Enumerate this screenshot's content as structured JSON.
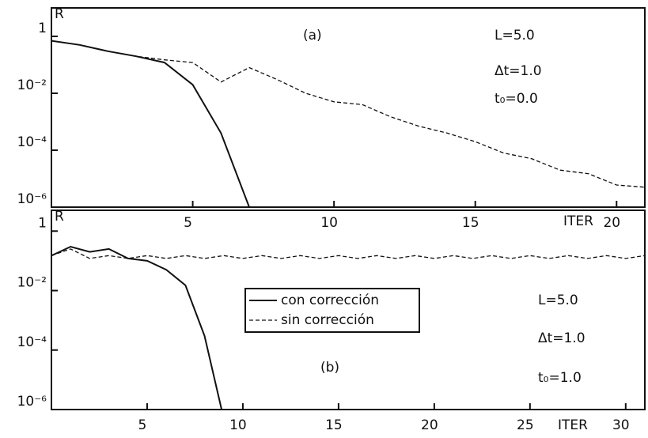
{
  "chart_data": [
    {
      "type": "line",
      "log_y": true,
      "y_label": "R",
      "x_label": "ITER",
      "annotations": [
        "(a)",
        "L=5.0",
        "Δt=1.0",
        "t₀=0.0"
      ],
      "x": [
        0,
        1,
        2,
        3,
        4,
        5,
        6,
        7,
        8,
        9,
        10,
        11,
        12,
        13,
        14,
        15,
        16,
        17,
        18,
        19,
        20,
        21
      ],
      "xlim": [
        0,
        21
      ],
      "xticks": [
        5,
        10,
        15,
        20
      ],
      "ylim": [
        1e-06,
        10
      ],
      "yticks": [
        1,
        {
          "value": 0.01,
          "label": "10⁻²"
        },
        {
          "value": 0.0001,
          "label": "10⁻⁴"
        },
        {
          "value": 1e-06,
          "label": "10⁻⁶"
        }
      ],
      "series": [
        {
          "color": "#111111",
          "dash": "solid",
          "values": [
            0.7,
            0.5,
            0.3,
            0.2,
            0.12,
            0.02,
            0.0004,
            1e-06,
            null,
            null,
            null,
            null,
            null,
            null,
            null,
            null,
            null,
            null,
            null,
            null,
            null,
            null
          ]
        },
        {
          "color": "#111111",
          "dash": "dashed",
          "values": [
            0.7,
            0.5,
            0.3,
            0.2,
            0.15,
            0.12,
            0.025,
            0.08,
            0.03,
            0.01,
            0.005,
            0.004,
            0.0015,
            0.0007,
            0.0004,
            0.0002,
            8e-05,
            5e-05,
            2e-05,
            1.5e-05,
            6e-06,
            5e-06
          ]
        }
      ]
    },
    {
      "type": "line",
      "log_y": true,
      "y_label": "R",
      "x_label": "ITER",
      "annotations": [
        "(b)",
        "L=5.0",
        "Δt=1.0",
        "t₀=1.0"
      ],
      "x": [
        0,
        1,
        2,
        3,
        4,
        5,
        6,
        7,
        8,
        9,
        10,
        11,
        12,
        13,
        14,
        15,
        16,
        17,
        18,
        19,
        20,
        21,
        22,
        23,
        24,
        25,
        26,
        27,
        28,
        29,
        30,
        31
      ],
      "xlim": [
        0,
        31
      ],
      "xticks": [
        5,
        10,
        15,
        20,
        25,
        30
      ],
      "ylim": [
        1e-06,
        5
      ],
      "yticks": [
        1,
        {
          "value": 0.01,
          "label": "10⁻²"
        },
        {
          "value": 0.0001,
          "label": "10⁻⁴"
        },
        {
          "value": 1e-06,
          "label": "10⁻⁶"
        }
      ],
      "series": [
        {
          "name": "con corrección",
          "color": "#111111",
          "dash": "solid",
          "values": [
            0.15,
            0.3,
            0.2,
            0.25,
            0.12,
            0.1,
            0.05,
            0.015,
            0.0003,
            5e-07,
            null,
            null,
            null,
            null,
            null,
            null,
            null,
            null,
            null,
            null,
            null,
            null,
            null,
            null,
            null,
            null,
            null,
            null,
            null,
            null,
            null,
            null
          ]
        },
        {
          "name": "sin corrección",
          "color": "#111111",
          "dash": "dashed",
          "values": [
            0.15,
            0.25,
            0.12,
            0.15,
            0.12,
            0.15,
            0.12,
            0.15,
            0.12,
            0.15,
            0.12,
            0.15,
            0.12,
            0.15,
            0.12,
            0.15,
            0.12,
            0.15,
            0.12,
            0.15,
            0.12,
            0.15,
            0.12,
            0.15,
            0.12,
            0.15,
            0.12,
            0.15,
            0.12,
            0.15,
            0.12,
            0.15
          ]
        }
      ]
    }
  ]
}
